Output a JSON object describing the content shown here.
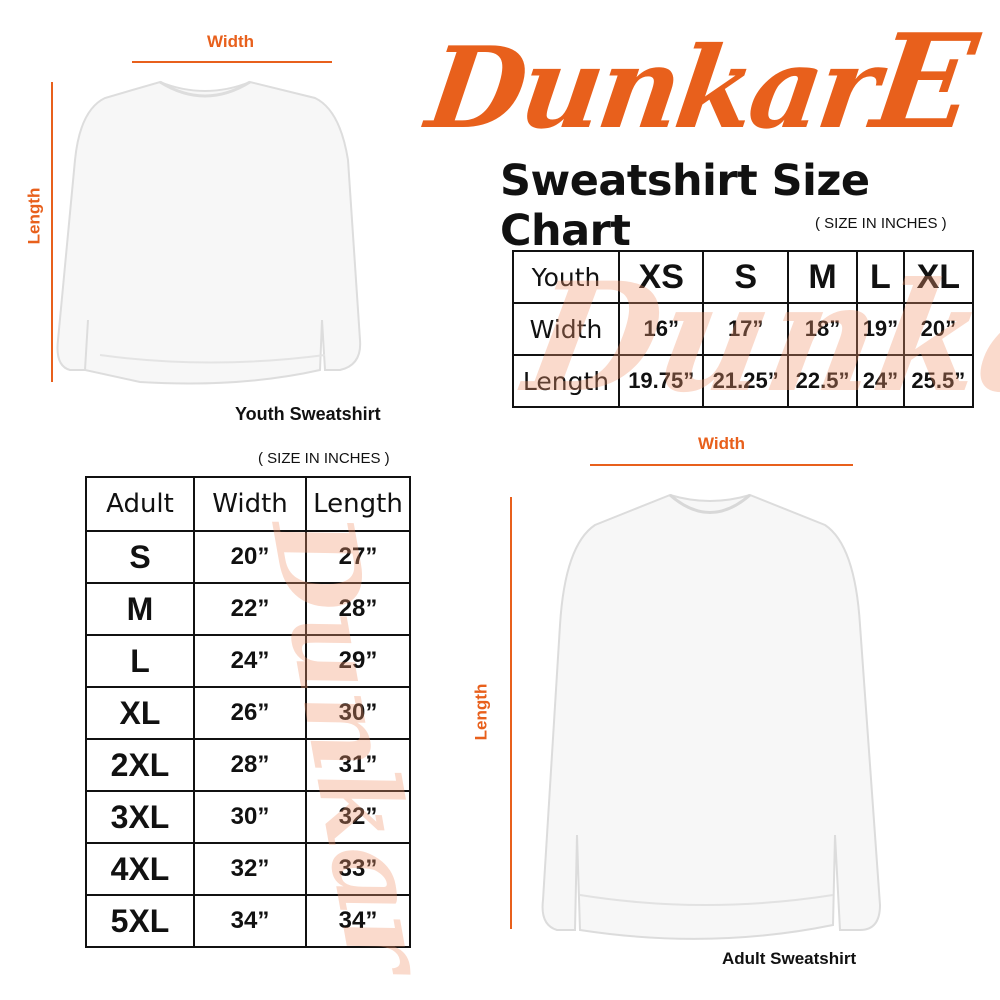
{
  "brand": {
    "logo_text": "DunkarE",
    "color": "#e8601c"
  },
  "title": "Sweatshirt Size Chart",
  "youth": {
    "caption": "Youth Sweatshirt",
    "width_label": "Width",
    "length_label": "Length",
    "units_note": "( SIZE IN INCHES )",
    "table": {
      "header": [
        "Youth",
        "XS",
        "S",
        "M",
        "L",
        "XL"
      ],
      "rows": [
        [
          "Width",
          "16”",
          "17”",
          "18”",
          "19”",
          "20”"
        ],
        [
          "Length",
          "19.75”",
          "21.25”",
          "22.5”",
          "24”",
          "25.5”"
        ]
      ]
    }
  },
  "adult": {
    "caption": "Adult Sweatshirt",
    "width_label": "Width",
    "length_label": "Length",
    "units_note": "( SIZE IN INCHES )",
    "table": {
      "header": [
        "Adult",
        "Width",
        "Length"
      ],
      "rows": [
        [
          "S",
          "20”",
          "27”"
        ],
        [
          "M",
          "22”",
          "28”"
        ],
        [
          "L",
          "24”",
          "29”"
        ],
        [
          "XL",
          "26”",
          "30”"
        ],
        [
          "2XL",
          "28”",
          "31”"
        ],
        [
          "3XL",
          "30”",
          "32”"
        ],
        [
          "4XL",
          "32”",
          "33”"
        ],
        [
          "5XL",
          "34”",
          "34”"
        ]
      ]
    }
  }
}
